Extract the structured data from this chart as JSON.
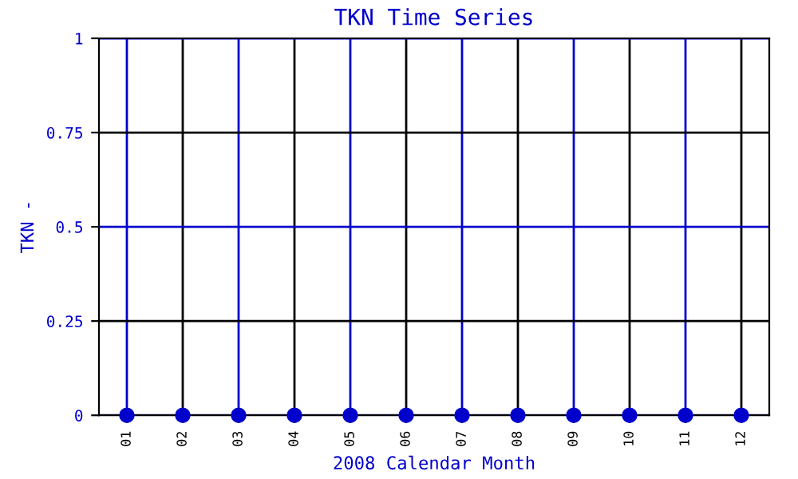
{
  "chart_data": {
    "type": "scatter",
    "title": "TKN Time Series",
    "xlabel": "2008 Calendar Month",
    "ylabel": "TKN -",
    "categories": [
      "01",
      "02",
      "03",
      "04",
      "05",
      "06",
      "07",
      "08",
      "09",
      "10",
      "11",
      "12"
    ],
    "series": [
      {
        "color": "#0000cc",
        "values": [
          0,
          0,
          0,
          0,
          0,
          0,
          0,
          0,
          0,
          0,
          0,
          0
        ]
      }
    ],
    "ylim": [
      0,
      1
    ],
    "yticks": [
      0,
      0.25,
      0.5,
      0.75,
      1
    ],
    "grid": true,
    "marker": "circle"
  }
}
